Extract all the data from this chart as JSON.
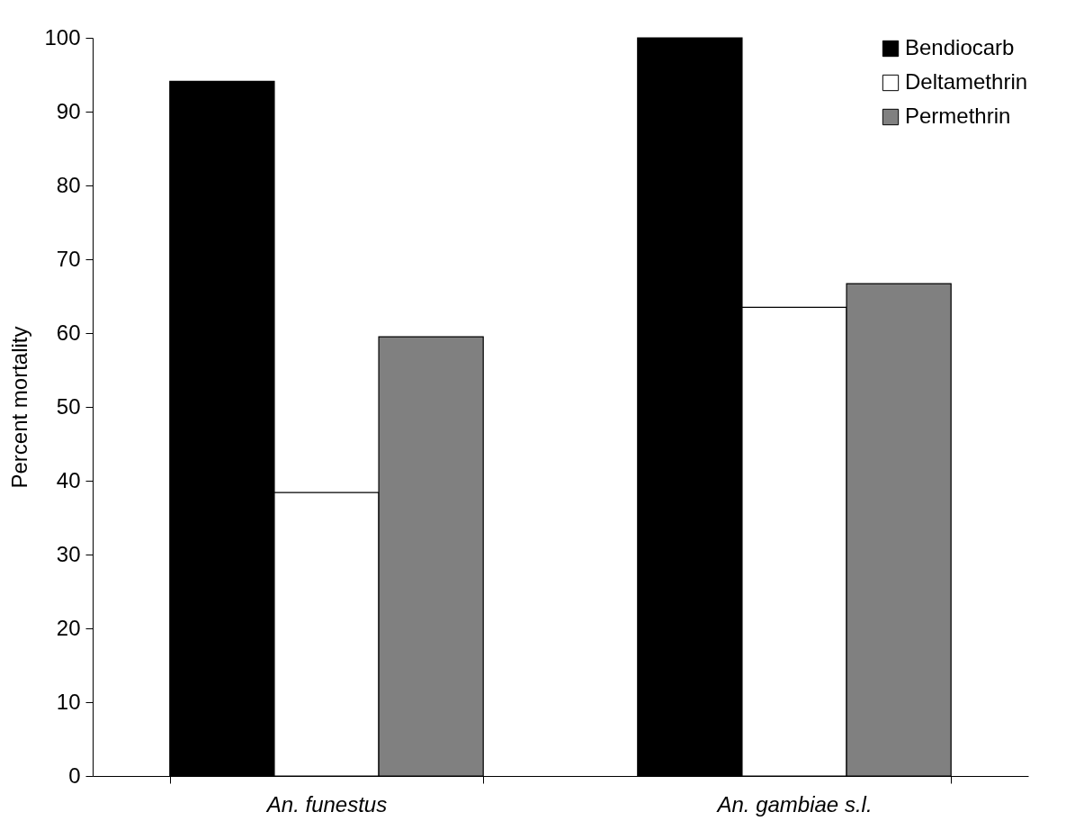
{
  "chart_data": {
    "type": "bar",
    "ylabel": "Percent mortality",
    "categories": [
      "An. funestus",
      "An. gambiae s.l."
    ],
    "series": [
      {
        "name": "Bendiocarb",
        "color": "#000000",
        "values": [
          94.1,
          100
        ]
      },
      {
        "name": "Deltamethrin",
        "color": "#ffffff",
        "values": [
          38.4,
          63.5
        ]
      },
      {
        "name": "Permethrin",
        "color": "#808080",
        "values": [
          59.5,
          66.7
        ]
      }
    ],
    "ylim": [
      0,
      100
    ],
    "yticks": [
      0,
      10,
      20,
      30,
      40,
      50,
      60,
      70,
      80,
      90,
      100
    ],
    "legend": "top right"
  }
}
